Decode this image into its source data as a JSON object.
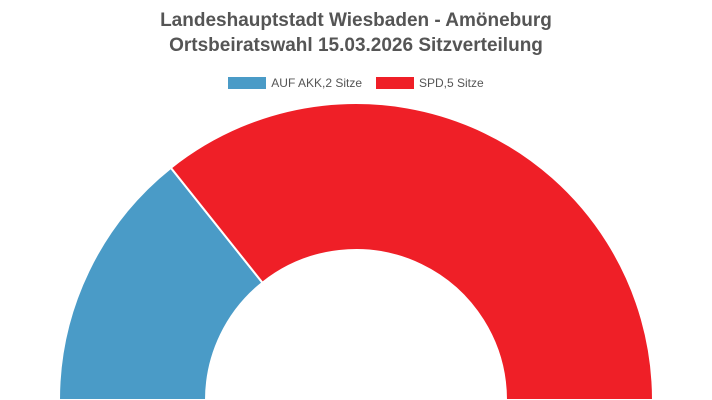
{
  "chart_data": {
    "type": "pie",
    "subtype": "half-doughnut (parliament seat distribution)",
    "title": "Landeshauptstadt Wiesbaden - Amöneburg",
    "subtitle": "Ortsbeiratswahl 15.03.2026 Sitzverteilung",
    "legend_position": "top",
    "categories": [
      "AUF AKK,2 Sitze",
      "SPD,5 Sitze"
    ],
    "values": [
      2,
      5
    ],
    "unit": "Sitze",
    "colors": [
      "#4a9bc7",
      "#ef1f27"
    ]
  }
}
